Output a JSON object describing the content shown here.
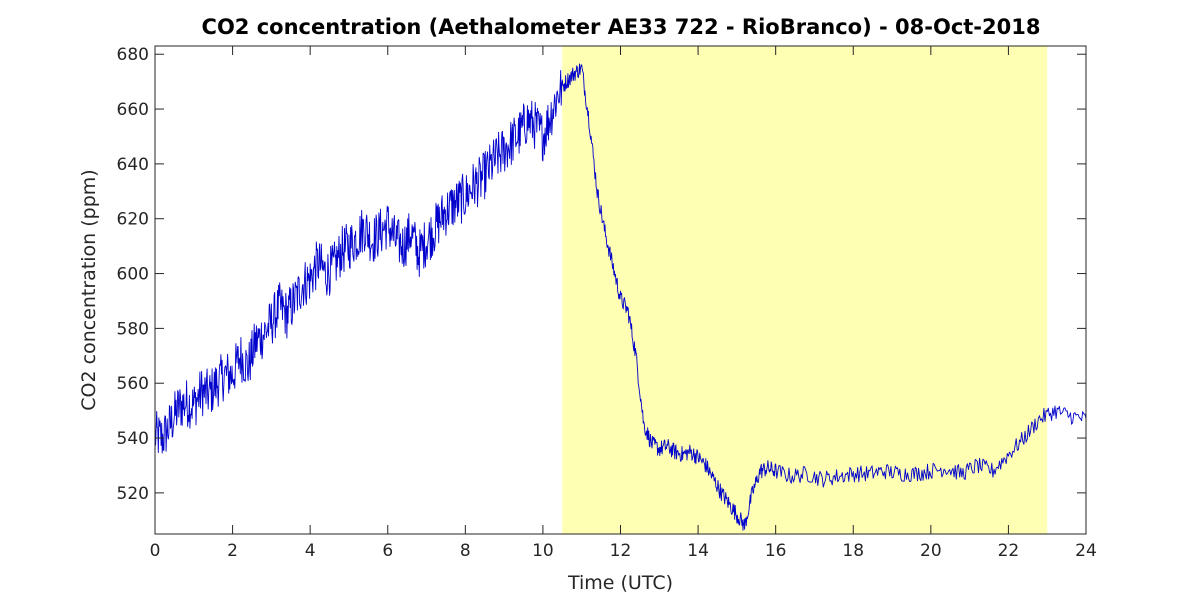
{
  "chart_data": {
    "type": "line",
    "title": "CO2 concentration (Aethalometer AE33 722 - RioBranco) - 08-Oct-2018",
    "xlabel": "Time (UTC)",
    "ylabel": "CO2 concentration (ppm)",
    "xlim": [
      0,
      24
    ],
    "ylim": [
      505,
      683
    ],
    "xticks": [
      0,
      2,
      4,
      6,
      8,
      10,
      12,
      14,
      16,
      18,
      20,
      22,
      24
    ],
    "yticks": [
      520,
      540,
      560,
      580,
      600,
      620,
      640,
      660,
      680
    ],
    "grid": false,
    "legend": "none",
    "highlight": {
      "x_start": 10.5,
      "x_end": 23.0,
      "color": "#ffffb3"
    },
    "series": [
      {
        "color": "#0000cc",
        "x": [
          0.0,
          0.2,
          0.4,
          0.6,
          0.8,
          1.0,
          1.2,
          1.4,
          1.6,
          1.8,
          2.0,
          2.2,
          2.4,
          2.6,
          2.8,
          3.0,
          3.2,
          3.4,
          3.6,
          3.8,
          4.0,
          4.2,
          4.4,
          4.6,
          4.8,
          5.0,
          5.2,
          5.4,
          5.6,
          5.8,
          6.0,
          6.2,
          6.4,
          6.6,
          6.8,
          7.0,
          7.2,
          7.4,
          7.6,
          7.8,
          8.0,
          8.2,
          8.4,
          8.6,
          8.8,
          9.0,
          9.2,
          9.4,
          9.6,
          9.8,
          10.0,
          10.2,
          10.4,
          10.6,
          10.8,
          11.0,
          11.2,
          11.4,
          11.6,
          11.8,
          12.0,
          12.2,
          12.4,
          12.6,
          12.8,
          13.0,
          13.2,
          13.4,
          13.6,
          13.8,
          14.0,
          14.2,
          14.4,
          14.6,
          14.8,
          15.0,
          15.2,
          15.4,
          15.6,
          15.8,
          16.0,
          16.4,
          16.8,
          17.2,
          17.6,
          18.0,
          18.4,
          18.8,
          19.2,
          19.6,
          20.0,
          20.4,
          20.8,
          21.2,
          21.6,
          22.0,
          22.4,
          22.8,
          23.2,
          23.6,
          24.0
        ],
        "y": [
          541,
          540,
          545,
          551,
          553,
          552,
          557,
          556,
          560,
          563,
          563,
          570,
          566,
          575,
          578,
          582,
          588,
          585,
          590,
          596,
          598,
          604,
          600,
          602,
          608,
          610,
          613,
          617,
          612,
          615,
          618,
          612,
          610,
          615,
          607,
          612,
          616,
          621,
          624,
          626,
          628,
          632,
          634,
          638,
          642,
          645,
          648,
          651,
          656,
          654,
          650,
          658,
          666,
          670,
          673,
          675,
          655,
          630,
          615,
          603,
          591,
          586,
          570,
          545,
          538,
          536,
          537,
          535,
          534,
          535,
          533,
          530,
          525,
          520,
          516,
          512,
          508,
          520,
          528,
          529,
          528,
          526,
          527,
          525,
          526,
          527,
          527,
          528,
          527,
          527,
          528,
          529,
          527,
          530,
          528,
          534,
          540,
          547,
          550,
          548,
          547
        ]
      }
    ]
  }
}
